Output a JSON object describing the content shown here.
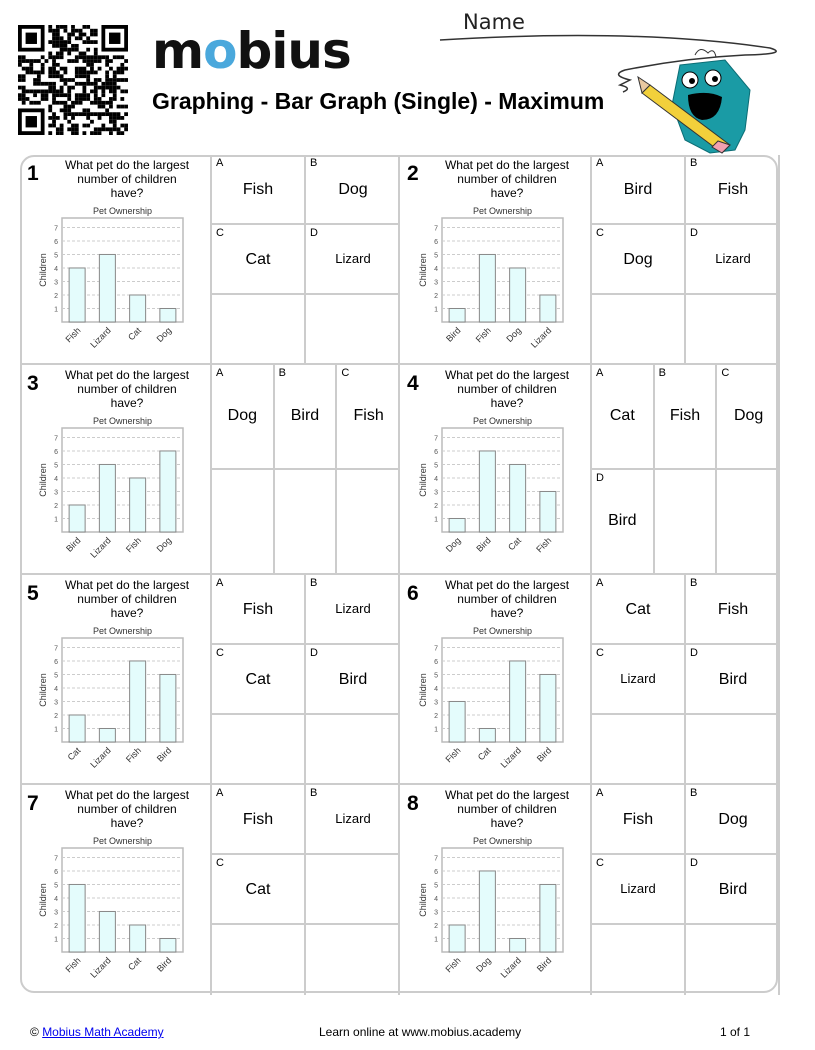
{
  "header": {
    "logo": "mobius",
    "title": "Graphing - Bar Graph (Single) - Maximum",
    "name_label": "Name"
  },
  "colors": {
    "bar_fill": "#e4fcfc",
    "bar_stroke": "#888888",
    "logo_accent": "#4aa8dc",
    "mascot": "#1a9ba5"
  },
  "problems": [
    {
      "number": "1",
      "question": "What pet do the largest number of children have?",
      "layout": "2x3",
      "chart_data": {
        "type": "bar",
        "title": "Pet Ownership",
        "ylabel": "Children",
        "categories": [
          "Fish",
          "Lizard",
          "Cat",
          "Dog"
        ],
        "values": [
          4,
          5,
          2,
          1
        ],
        "yticks": [
          1,
          2,
          3,
          4,
          5,
          6,
          7
        ],
        "grid": true
      },
      "options": [
        {
          "letter": "A",
          "text": "Fish"
        },
        {
          "letter": "B",
          "text": "Dog"
        },
        {
          "letter": "C",
          "text": "Cat"
        },
        {
          "letter": "D",
          "text": "Lizard"
        }
      ]
    },
    {
      "number": "2",
      "question": "What pet do the largest number of children have?",
      "layout": "2x3",
      "chart_data": {
        "type": "bar",
        "title": "Pet Ownership",
        "ylabel": "Children",
        "categories": [
          "Bird",
          "Fish",
          "Dog",
          "Lizard"
        ],
        "values": [
          1,
          5,
          4,
          2
        ],
        "yticks": [
          1,
          2,
          3,
          4,
          5,
          6,
          7
        ],
        "grid": true
      },
      "options": [
        {
          "letter": "A",
          "text": "Bird"
        },
        {
          "letter": "B",
          "text": "Fish"
        },
        {
          "letter": "C",
          "text": "Dog"
        },
        {
          "letter": "D",
          "text": "Lizard"
        }
      ]
    },
    {
      "number": "3",
      "question": "What pet do the largest number of children have?",
      "layout": "3x2",
      "chart_data": {
        "type": "bar",
        "title": "Pet Ownership",
        "ylabel": "Children",
        "categories": [
          "Bird",
          "Lizard",
          "Fish",
          "Dog"
        ],
        "values": [
          2,
          5,
          4,
          6
        ],
        "yticks": [
          1,
          2,
          3,
          4,
          5,
          6,
          7
        ],
        "grid": true
      },
      "options": [
        {
          "letter": "A",
          "text": "Dog"
        },
        {
          "letter": "B",
          "text": "Bird"
        },
        {
          "letter": "C",
          "text": "Fish"
        }
      ]
    },
    {
      "number": "4",
      "question": "What pet do the largest number of children have?",
      "layout": "3x2",
      "chart_data": {
        "type": "bar",
        "title": "Pet Ownership",
        "ylabel": "Children",
        "categories": [
          "Dog",
          "Bird",
          "Cat",
          "Fish"
        ],
        "values": [
          1,
          6,
          5,
          3
        ],
        "yticks": [
          1,
          2,
          3,
          4,
          5,
          6,
          7
        ],
        "grid": true
      },
      "options": [
        {
          "letter": "A",
          "text": "Cat"
        },
        {
          "letter": "B",
          "text": "Fish"
        },
        {
          "letter": "C",
          "text": "Dog"
        },
        {
          "letter": "D",
          "text": "Bird"
        }
      ]
    },
    {
      "number": "5",
      "question": "What pet do the largest number of children have?",
      "layout": "2x3",
      "chart_data": {
        "type": "bar",
        "title": "Pet Ownership",
        "ylabel": "Children",
        "categories": [
          "Cat",
          "Lizard",
          "Fish",
          "Bird"
        ],
        "values": [
          2,
          1,
          6,
          5
        ],
        "yticks": [
          1,
          2,
          3,
          4,
          5,
          6,
          7
        ],
        "grid": true
      },
      "options": [
        {
          "letter": "A",
          "text": "Fish"
        },
        {
          "letter": "B",
          "text": "Lizard"
        },
        {
          "letter": "C",
          "text": "Cat"
        },
        {
          "letter": "D",
          "text": "Bird"
        }
      ]
    },
    {
      "number": "6",
      "question": "What pet do the largest number of children have?",
      "layout": "2x3",
      "chart_data": {
        "type": "bar",
        "title": "Pet Ownership",
        "ylabel": "Children",
        "categories": [
          "Fish",
          "Cat",
          "Lizard",
          "Bird"
        ],
        "values": [
          3,
          1,
          6,
          5
        ],
        "yticks": [
          1,
          2,
          3,
          4,
          5,
          6,
          7
        ],
        "grid": true
      },
      "options": [
        {
          "letter": "A",
          "text": "Cat"
        },
        {
          "letter": "B",
          "text": "Fish"
        },
        {
          "letter": "C",
          "text": "Lizard"
        },
        {
          "letter": "D",
          "text": "Bird"
        }
      ]
    },
    {
      "number": "7",
      "question": "What pet do the largest number of children have?",
      "layout": "2x3",
      "chart_data": {
        "type": "bar",
        "title": "Pet Ownership",
        "ylabel": "Children",
        "categories": [
          "Fish",
          "Lizard",
          "Cat",
          "Bird"
        ],
        "values": [
          5,
          3,
          2,
          1
        ],
        "yticks": [
          1,
          2,
          3,
          4,
          5,
          6,
          7
        ],
        "grid": true
      },
      "options": [
        {
          "letter": "A",
          "text": "Fish"
        },
        {
          "letter": "B",
          "text": "Lizard"
        },
        {
          "letter": "C",
          "text": "Cat"
        }
      ]
    },
    {
      "number": "8",
      "question": "What pet do the largest number of children have?",
      "layout": "2x3",
      "chart_data": {
        "type": "bar",
        "title": "Pet Ownership",
        "ylabel": "Children",
        "categories": [
          "Fish",
          "Dog",
          "Lizard",
          "Bird"
        ],
        "values": [
          2,
          6,
          1,
          5
        ],
        "yticks": [
          1,
          2,
          3,
          4,
          5,
          6,
          7
        ],
        "grid": true
      },
      "options": [
        {
          "letter": "A",
          "text": "Fish"
        },
        {
          "letter": "B",
          "text": "Dog"
        },
        {
          "letter": "C",
          "text": "Lizard"
        },
        {
          "letter": "D",
          "text": "Bird"
        }
      ]
    }
  ],
  "footer": {
    "copyright": "©",
    "link_text": "Mobius Math Academy",
    "center": "Learn online at www.mobius.academy",
    "page": "1 of 1"
  }
}
